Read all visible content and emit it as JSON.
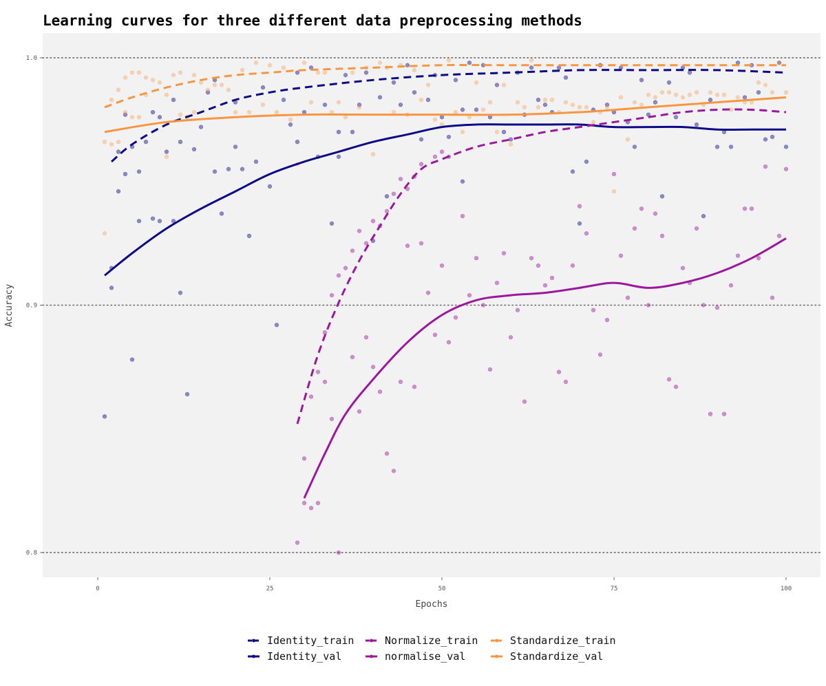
{
  "chart_data": {
    "type": "line",
    "title": "Learning curves for three different data preprocessing methods",
    "xlabel": "Epochs",
    "ylabel": "Accuracy",
    "xlim": [
      -8,
      105
    ],
    "ylim": [
      0.79,
      1.01
    ],
    "x_ticks": [
      0,
      25,
      50,
      75,
      100
    ],
    "x_tick_labels": [
      "0",
      "25",
      "50",
      "75",
      "100"
    ],
    "y_ticks": [
      0.8,
      0.9,
      1.0
    ],
    "y_tick_labels": [
      "0.8",
      "0.9",
      "1.0"
    ],
    "grid": "horizontal-dotted",
    "legend_position": "bottom",
    "colors": {
      "identity": "#0d0887",
      "normalize": "#9c179e",
      "standardize": "#f89540",
      "panel": "#f2f2f2",
      "grid": "#666666"
    },
    "series": [
      {
        "name": "Identity_train",
        "color": "#0d0887",
        "dash": true,
        "x": [
          2,
          5,
          10,
          15,
          20,
          25,
          30,
          40,
          50,
          60,
          70,
          80,
          90,
          100
        ],
        "y": [
          0.958,
          0.965,
          0.973,
          0.978,
          0.983,
          0.986,
          0.988,
          0.991,
          0.993,
          0.994,
          0.995,
          0.995,
          0.995,
          0.994
        ]
      },
      {
        "name": "Identity_val",
        "color": "#0d0887",
        "dash": false,
        "x": [
          1,
          5,
          10,
          15,
          20,
          25,
          30,
          35,
          40,
          45,
          50,
          55,
          60,
          65,
          70,
          75,
          80,
          85,
          90,
          95,
          100
        ],
        "y": [
          0.912,
          0.921,
          0.931,
          0.939,
          0.946,
          0.953,
          0.958,
          0.962,
          0.966,
          0.969,
          0.972,
          0.973,
          0.973,
          0.973,
          0.973,
          0.972,
          0.972,
          0.972,
          0.971,
          0.971,
          0.971
        ]
      },
      {
        "name": "Normalize_train",
        "color": "#9c179e",
        "dash": true,
        "x": [
          29,
          32,
          35,
          38,
          41,
          44,
          47,
          50,
          55,
          60,
          65,
          70,
          75,
          80,
          85,
          90,
          95,
          100
        ],
        "y": [
          0.852,
          0.88,
          0.901,
          0.918,
          0.932,
          0.945,
          0.955,
          0.959,
          0.964,
          0.967,
          0.97,
          0.972,
          0.974,
          0.976,
          0.978,
          0.979,
          0.979,
          0.978
        ]
      },
      {
        "name": "normalise_val",
        "color": "#9c179e",
        "dash": false,
        "x": [
          30,
          33,
          36,
          40,
          45,
          50,
          55,
          60,
          65,
          70,
          75,
          80,
          85,
          90,
          95,
          100
        ],
        "y": [
          0.822,
          0.84,
          0.856,
          0.87,
          0.885,
          0.896,
          0.902,
          0.904,
          0.905,
          0.907,
          0.909,
          0.907,
          0.909,
          0.913,
          0.919,
          0.927
        ]
      },
      {
        "name": "Standardize_train",
        "color": "#f89540",
        "dash": true,
        "x": [
          1,
          5,
          10,
          15,
          20,
          25,
          30,
          40,
          50,
          60,
          70,
          80,
          90,
          100
        ],
        "y": [
          0.98,
          0.984,
          0.988,
          0.991,
          0.993,
          0.994,
          0.995,
          0.996,
          0.997,
          0.997,
          0.997,
          0.997,
          0.997,
          0.997
        ]
      },
      {
        "name": "Standardize_val",
        "color": "#f89540",
        "dash": false,
        "x": [
          1,
          10,
          20,
          30,
          40,
          50,
          60,
          70,
          80,
          90,
          100
        ],
        "y": [
          0.97,
          0.974,
          0.976,
          0.977,
          0.977,
          0.977,
          0.977,
          0.978,
          0.98,
          0.982,
          0.984
        ]
      }
    ],
    "points": [
      {
        "group": "identity",
        "color": "#0d0887",
        "x": [
          1,
          2,
          2,
          3,
          3,
          4,
          4,
          5,
          5,
          6,
          6,
          7,
          8,
          8,
          9,
          9,
          10,
          11,
          11,
          12,
          12,
          13,
          14,
          15,
          16,
          17,
          17,
          18,
          19,
          20,
          20,
          21,
          22,
          23,
          24,
          25,
          26,
          27,
          28,
          29,
          29,
          30,
          31,
          32,
          33,
          34,
          35,
          35,
          36,
          37,
          38,
          39,
          40,
          41,
          42,
          43,
          44,
          45,
          46,
          47,
          48,
          49,
          50,
          51,
          52,
          53,
          53,
          54,
          55,
          56,
          57,
          58,
          59,
          60,
          61,
          62,
          63,
          64,
          65,
          66,
          67,
          68,
          69,
          70,
          71,
          72,
          73,
          74,
          75,
          76,
          77,
          78,
          79,
          80,
          81,
          82,
          83,
          84,
          85,
          86,
          87,
          88,
          89,
          90,
          91,
          92,
          93,
          94,
          95,
          96,
          97,
          98,
          99,
          100
        ],
        "y": [
          0.855,
          0.915,
          0.907,
          0.962,
          0.946,
          0.953,
          0.977,
          0.964,
          0.878,
          0.954,
          0.934,
          0.966,
          0.935,
          0.978,
          0.934,
          0.976,
          0.962,
          0.934,
          0.983,
          0.905,
          0.966,
          0.864,
          0.963,
          0.972,
          0.986,
          0.954,
          0.991,
          0.937,
          0.955,
          0.964,
          0.982,
          0.955,
          0.928,
          0.958,
          0.988,
          0.948,
          0.892,
          0.983,
          0.973,
          0.966,
          0.994,
          0.978,
          0.996,
          0.96,
          0.981,
          0.933,
          0.96,
          0.97,
          0.993,
          0.97,
          0.981,
          0.994,
          0.926,
          0.984,
          0.944,
          0.99,
          0.981,
          0.997,
          0.986,
          0.967,
          0.983,
          0.993,
          0.976,
          0.968,
          0.991,
          0.95,
          0.979,
          0.998,
          0.979,
          0.997,
          0.976,
          0.989,
          0.97,
          0.967,
          0.994,
          0.977,
          0.996,
          0.983,
          0.981,
          0.978,
          0.996,
          0.992,
          0.954,
          0.933,
          0.958,
          0.979,
          0.997,
          0.981,
          0.978,
          0.996,
          0.974,
          0.964,
          0.991,
          0.977,
          0.982,
          0.944,
          0.99,
          0.976,
          0.996,
          0.994,
          0.973,
          0.936,
          0.983,
          0.964,
          0.97,
          0.964,
          0.998,
          0.984,
          0.997,
          0.986,
          0.967,
          0.968,
          0.998,
          0.964
        ]
      },
      {
        "group": "normalize",
        "color": "#9c179e",
        "x": [
          29,
          30,
          30,
          31,
          31,
          32,
          32,
          33,
          33,
          34,
          34,
          35,
          35,
          36,
          37,
          37,
          38,
          38,
          39,
          39,
          40,
          40,
          41,
          41,
          42,
          42,
          43,
          43,
          44,
          44,
          45,
          45,
          46,
          46,
          47,
          47,
          48,
          49,
          49,
          50,
          50,
          51,
          51,
          52,
          53,
          54,
          55,
          56,
          57,
          58,
          59,
          60,
          61,
          62,
          63,
          64,
          65,
          66,
          67,
          68,
          69,
          70,
          71,
          72,
          73,
          74,
          75,
          76,
          77,
          78,
          79,
          80,
          81,
          82,
          83,
          84,
          85,
          86,
          87,
          88,
          89,
          90,
          91,
          92,
          93,
          94,
          95,
          96,
          97,
          98,
          99,
          100
        ],
        "y": [
          0.804,
          0.838,
          0.82,
          0.818,
          0.863,
          0.82,
          0.873,
          0.889,
          0.869,
          0.854,
          0.904,
          0.8,
          0.912,
          0.915,
          0.879,
          0.922,
          0.857,
          0.93,
          0.887,
          0.925,
          0.875,
          0.934,
          0.865,
          0.932,
          0.938,
          0.84,
          0.833,
          0.945,
          0.869,
          0.951,
          0.924,
          0.947,
          0.867,
          0.952,
          0.925,
          0.957,
          0.905,
          0.888,
          0.96,
          0.916,
          0.962,
          0.885,
          0.96,
          0.895,
          0.936,
          0.904,
          0.919,
          0.9,
          0.874,
          0.909,
          0.921,
          0.887,
          0.898,
          0.861,
          0.919,
          0.916,
          0.908,
          0.911,
          0.873,
          0.869,
          0.916,
          0.94,
          0.929,
          0.898,
          0.88,
          0.894,
          0.953,
          0.92,
          0.903,
          0.931,
          0.939,
          0.9,
          0.937,
          0.928,
          0.87,
          0.867,
          0.915,
          0.909,
          0.931,
          0.9,
          0.856,
          0.899,
          0.856,
          0.908,
          0.92,
          0.939,
          0.939,
          0.919,
          0.956,
          0.903,
          0.928,
          0.955
        ]
      },
      {
        "group": "standardize",
        "color": "#f89540",
        "x": [
          1,
          1,
          2,
          2,
          3,
          3,
          4,
          4,
          5,
          5,
          6,
          6,
          7,
          7,
          8,
          9,
          10,
          10,
          11,
          12,
          12,
          13,
          14,
          14,
          15,
          16,
          17,
          18,
          19,
          20,
          21,
          22,
          23,
          24,
          25,
          26,
          27,
          28,
          29,
          30,
          31,
          32,
          33,
          34,
          35,
          36,
          37,
          38,
          39,
          40,
          41,
          42,
          43,
          44,
          45,
          46,
          47,
          48,
          49,
          50,
          51,
          52,
          53,
          54,
          55,
          56,
          57,
          58,
          59,
          60,
          61,
          62,
          63,
          64,
          65,
          66,
          67,
          68,
          69,
          70,
          71,
          72,
          73,
          74,
          75,
          76,
          77,
          78,
          79,
          80,
          81,
          82,
          83,
          84,
          85,
          86,
          87,
          88,
          89,
          90,
          91,
          92,
          93,
          94,
          95,
          96,
          97,
          98,
          99,
          100
        ],
        "y": [
          0.929,
          0.966,
          0.965,
          0.983,
          0.966,
          0.987,
          0.978,
          0.992,
          0.976,
          0.994,
          0.976,
          0.994,
          0.985,
          0.992,
          0.991,
          0.99,
          0.96,
          0.985,
          0.993,
          0.977,
          0.994,
          0.976,
          0.993,
          0.978,
          0.99,
          0.987,
          0.989,
          0.989,
          0.987,
          0.978,
          0.995,
          0.978,
          0.998,
          0.981,
          0.997,
          0.978,
          0.996,
          0.975,
          0.957,
          0.998,
          0.982,
          0.994,
          0.994,
          0.978,
          0.982,
          0.976,
          0.994,
          0.98,
          0.996,
          0.961,
          0.998,
          0.996,
          0.978,
          0.997,
          0.977,
          0.995,
          0.983,
          0.989,
          0.975,
          0.973,
          0.999,
          0.978,
          0.97,
          0.976,
          0.99,
          0.979,
          0.982,
          0.97,
          0.989,
          0.965,
          0.982,
          0.98,
          0.999,
          0.98,
          0.983,
          0.983,
          0.978,
          0.982,
          0.981,
          0.98,
          0.98,
          0.974,
          0.978,
          0.98,
          0.946,
          0.984,
          0.967,
          0.982,
          0.981,
          0.985,
          0.984,
          0.986,
          0.986,
          0.985,
          0.984,
          0.985,
          0.986,
          0.981,
          0.986,
          0.985,
          0.985,
          0.979,
          0.984,
          0.982,
          0.982,
          0.99,
          0.989,
          0.986,
          0.998,
          0.986
        ]
      }
    ]
  }
}
